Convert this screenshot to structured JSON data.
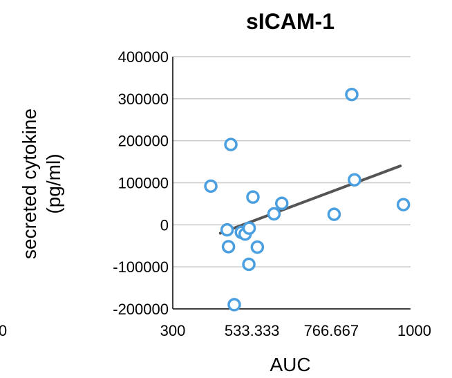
{
  "chart_data": {
    "type": "scatter",
    "title": "sICAM-1",
    "xlabel": "AUC",
    "ylabel_line1": "secreted cytokine",
    "ylabel_line2": "(pg/ml)",
    "xlim": [
      300,
      1000
    ],
    "ylim": [
      -200000,
      400000
    ],
    "x_ticks": [
      "300",
      "533.333",
      "766.667",
      "1000"
    ],
    "y_ticks": [
      "400000",
      "300000",
      "200000",
      "100000",
      "0",
      "-100000",
      "-200000"
    ],
    "edge_tick_left": "0",
    "grid": true,
    "marker_color": "#4a9fe0",
    "trendline_color": "#555555",
    "points": [
      {
        "x": 412,
        "y": 92000
      },
      {
        "x": 460,
        "y": -12000
      },
      {
        "x": 464,
        "y": -52000
      },
      {
        "x": 471,
        "y": 191000
      },
      {
        "x": 481,
        "y": -190000
      },
      {
        "x": 502,
        "y": -18000
      },
      {
        "x": 513,
        "y": -22000
      },
      {
        "x": 525,
        "y": -8000
      },
      {
        "x": 524,
        "y": -94000
      },
      {
        "x": 536,
        "y": 66000
      },
      {
        "x": 549,
        "y": -53000
      },
      {
        "x": 598,
        "y": 26000
      },
      {
        "x": 621,
        "y": 51000
      },
      {
        "x": 775,
        "y": 25000
      },
      {
        "x": 827,
        "y": 310000
      },
      {
        "x": 835,
        "y": 107000
      },
      {
        "x": 979,
        "y": 48000
      }
    ],
    "trendline": {
      "x": [
        440,
        970
      ],
      "y": [
        -20000,
        140000
      ]
    }
  }
}
